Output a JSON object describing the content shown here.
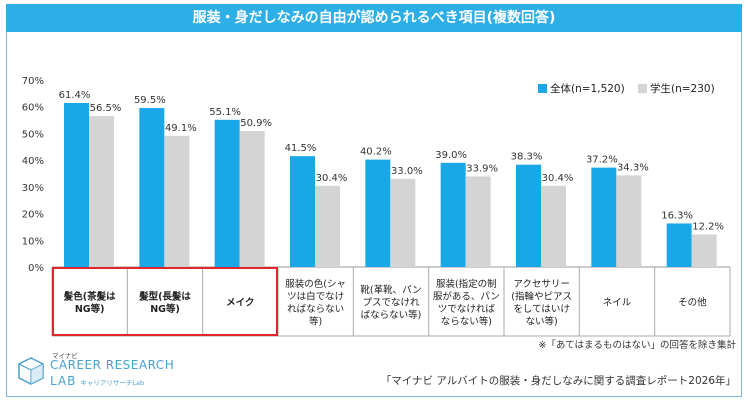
{
  "title": "服装・身だしなみの自由が認められるべき項目(複数回答)",
  "note": "※「あてはまるものはない」の回答を除き集計",
  "source": "「マイナビ アルバイトの服装・身だしなみに関する調査レポート2026年」",
  "logo": {
    "small": "マイナビ",
    "line1": "CAREER RESEARCH",
    "line2": "LAB",
    "line2_sub": "キャリアリサーチLab"
  },
  "colors": {
    "series1": "#1aa7e8",
    "series2": "#d4d4d4",
    "highlight": "#e0262b",
    "title_bg": "#2eaee6"
  },
  "chart_data": {
    "type": "bar",
    "title": "服装・身だしなみの自由が認められるべき項目(複数回答)",
    "ylim": [
      0,
      70
    ],
    "yticks": [
      "0%",
      "10%",
      "20%",
      "30%",
      "40%",
      "50%",
      "60%",
      "70%"
    ],
    "legend_position": "top-right",
    "categories": [
      [
        "髪色(茶髪は",
        "NG等)"
      ],
      [
        "髪型(長髪は",
        "NG等)"
      ],
      [
        "メイク"
      ],
      [
        "服装の色(シャ",
        "ツは白でなけ",
        "ればならない",
        "等)"
      ],
      [
        "靴(革靴、パン",
        "プスでなけれ",
        "ばならない等)"
      ],
      [
        "服装(指定の制",
        "服がある、パン",
        "ツでなければ",
        "ならない等)"
      ],
      [
        "アクセサリー",
        "(指輪やピアス",
        "をしてはいけ",
        "ない等)"
      ],
      [
        "ネイル"
      ],
      [
        "その他"
      ]
    ],
    "highlighted_categories": [
      0,
      1,
      2
    ],
    "series": [
      {
        "name": "全体(n=1,520)",
        "values": [
          61.4,
          59.5,
          55.1,
          41.5,
          40.2,
          39.0,
          38.3,
          37.2,
          16.3
        ],
        "labels": [
          "61.4%",
          "59.5%",
          "55.1%",
          "41.5%",
          "40.2%",
          "39.0%",
          "38.3%",
          "37.2%",
          "16.3%"
        ]
      },
      {
        "name": "学生(n=230)",
        "values": [
          56.5,
          49.1,
          50.9,
          30.4,
          33.0,
          33.9,
          30.4,
          34.3,
          12.2
        ],
        "labels": [
          "56.5%",
          "49.1%",
          "50.9%",
          "30.4%",
          "33.0%",
          "33.9%",
          "30.4%",
          "34.3%",
          "12.2%"
        ]
      }
    ]
  }
}
